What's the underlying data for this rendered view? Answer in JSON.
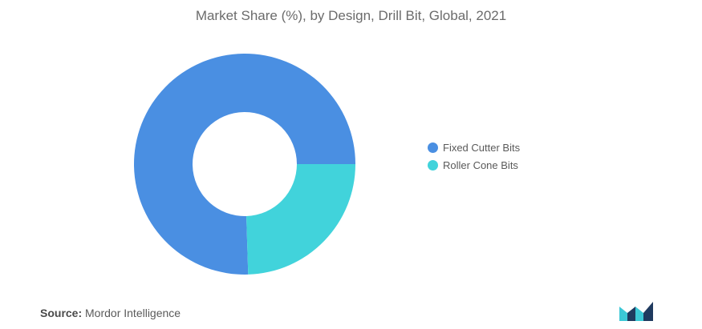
{
  "chart_data": {
    "type": "pie",
    "title": "Market Share (%), by Design, Drill Bit, Global, 2021",
    "categories": [
      "Fixed Cutter Bits",
      "Roller Cone Bits"
    ],
    "values": [
      75.5,
      24.5
    ],
    "colors": [
      "#4a8fe2",
      "#41d3db"
    ],
    "legend_position": "right"
  },
  "source": {
    "prefix": "Source:",
    "text": "Mordor Intelligence"
  },
  "logo": {
    "icon": "mordor-intelligence-logo",
    "colors": [
      "#1f3a5f",
      "#3cc8d6"
    ]
  }
}
